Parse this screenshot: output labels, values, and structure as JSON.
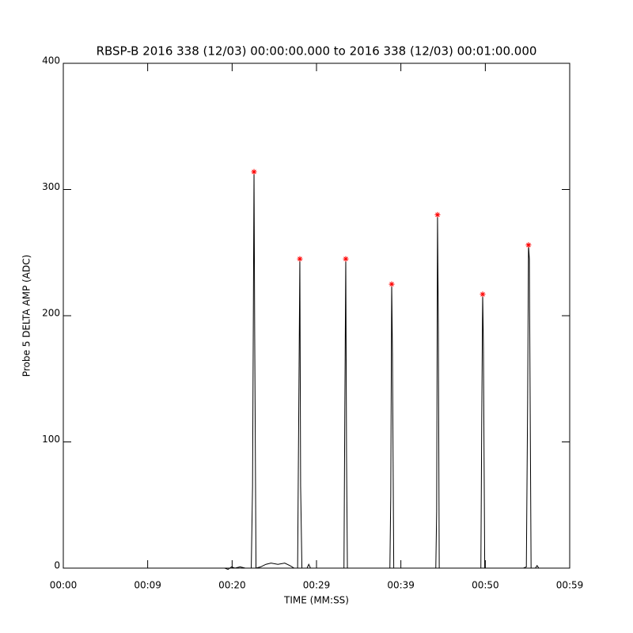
{
  "chart_data": {
    "type": "line",
    "title": "RBSP-B 2016 338 (12/03) 00:00:00.000 to 2016 338 (12/03) 00:01:00.000",
    "xlabel": "TIME (MM:SS)",
    "ylabel": "Probe 5 DELTA AMP (ADC)",
    "xlim": [
      0,
      59
    ],
    "ylim": [
      0,
      400
    ],
    "xticks": [
      {
        "value": 0,
        "label": "00:00"
      },
      {
        "value": 9.83,
        "label": "00:09"
      },
      {
        "value": 19.67,
        "label": "00:20"
      },
      {
        "value": 29.5,
        "label": "00:29"
      },
      {
        "value": 39.33,
        "label": "00:39"
      },
      {
        "value": 49.17,
        "label": "00:50"
      },
      {
        "value": 59,
        "label": "00:59"
      }
    ],
    "yticks": [
      0,
      100,
      200,
      300,
      400
    ],
    "series": [
      {
        "color": "#000000",
        "x": [
          0,
          18.8,
          19.2,
          19.6,
          20.0,
          20.6,
          21.2,
          21.9,
          22.05,
          22.22,
          22.3,
          22.45,
          23.0,
          23.6,
          24.2,
          25.0,
          25.8,
          26.4,
          26.9,
          27.3,
          27.45,
          27.56,
          27.65,
          27.8,
          28.4,
          28.6,
          28.8,
          32.7,
          32.8,
          32.91,
          33.0,
          33.1,
          38.05,
          38.15,
          38.26,
          38.35,
          38.5,
          43.4,
          43.5,
          43.6,
          43.7,
          43.8,
          48.65,
          48.75,
          48.86,
          48.95,
          49.1,
          53.6,
          53.95,
          54.1,
          54.2,
          54.3,
          54.5,
          55.0,
          55.2,
          55.4
        ],
        "values": [
          0,
          0,
          -1,
          1,
          0,
          1,
          0,
          0,
          65,
          314,
          185,
          0,
          1,
          3,
          4,
          3,
          4,
          2,
          0,
          0,
          140,
          245,
          65,
          0,
          0,
          3,
          0,
          0,
          127,
          245,
          90,
          0,
          0,
          57,
          225,
          170,
          0,
          0,
          45,
          280,
          187,
          0,
          0,
          117,
          217,
          175,
          0,
          0,
          1,
          133,
          256,
          245,
          0,
          0,
          2,
          0
        ]
      },
      {
        "color": "#ff0000",
        "marker": "asterisk",
        "x": [
          22.22,
          27.56,
          32.91,
          38.26,
          43.6,
          48.86,
          54.2
        ],
        "values": [
          314,
          245,
          245,
          225,
          280,
          217,
          256
        ]
      }
    ]
  }
}
